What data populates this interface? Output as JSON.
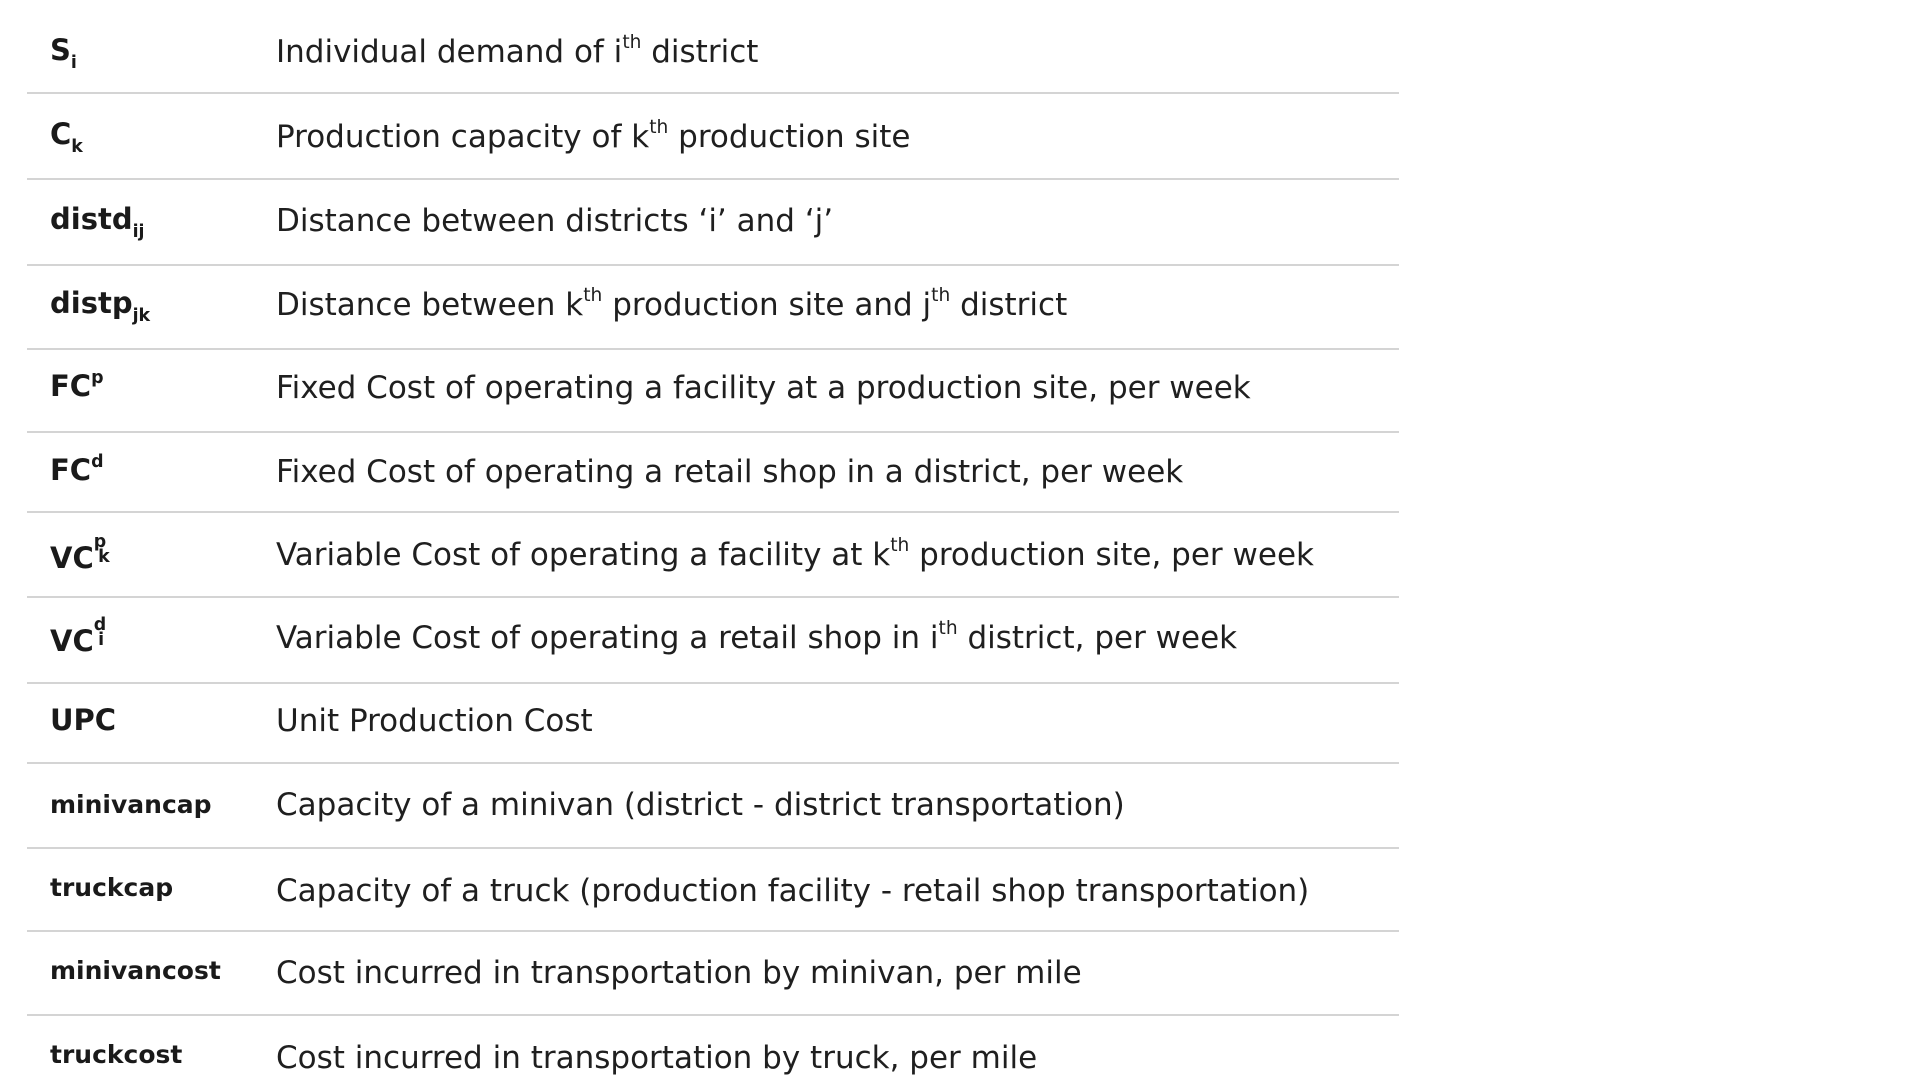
{
  "rows": [
    {
      "sym_base": "S",
      "sym_sub": "i",
      "desc_parts": [
        "Individual demand of i",
        "th",
        " district"
      ]
    },
    {
      "sym_base": "C",
      "sym_sub": "k",
      "desc_parts": [
        "Production capacity of k",
        "th",
        " production site"
      ]
    },
    {
      "sym_base": "distd",
      "sym_sub": "ij",
      "desc_parts": [
        "Distance between districts ‘i’ and ‘j’"
      ]
    },
    {
      "sym_base": "distp",
      "sym_sub": "jk",
      "desc_parts": [
        "Distance between k",
        "th",
        " production site and j",
        "th",
        " district"
      ]
    },
    {
      "sym_base": "FC",
      "sym_sup": "p",
      "desc_parts": [
        "Fixed Cost of operating a facility at a production site, per week"
      ]
    },
    {
      "sym_base": "FC",
      "sym_sup": "d",
      "desc_parts": [
        "Fixed Cost of operating a retail shop in a district, per week"
      ]
    },
    {
      "sym_base": "VC",
      "sym_sup": "p",
      "sym_sub": "k",
      "desc_parts": [
        "Variable Cost of operating a facility at k",
        "th",
        " production site, per week"
      ]
    },
    {
      "sym_base": "VC",
      "sym_sup": "d",
      "sym_sub": "i",
      "desc_parts": [
        "Variable Cost of operating a retail shop in i",
        "th",
        " district, per week"
      ]
    },
    {
      "sym_base": "UPC",
      "desc_parts": [
        "Unit Production Cost"
      ]
    },
    {
      "sym_base": "minivancap",
      "desc_parts": [
        "Capacity of a minivan (district - district transportation)"
      ]
    },
    {
      "sym_base": "truckcap",
      "desc_parts": [
        "Capacity of a truck (production facility - retail shop transportation)"
      ]
    },
    {
      "sym_base": "minivancost",
      "desc_parts": [
        "Cost incurred in transportation by minivan, per mile"
      ]
    },
    {
      "sym_base": "truckcost",
      "desc_parts": [
        "Cost incurred in transportation by truck, per mile"
      ]
    }
  ]
}
